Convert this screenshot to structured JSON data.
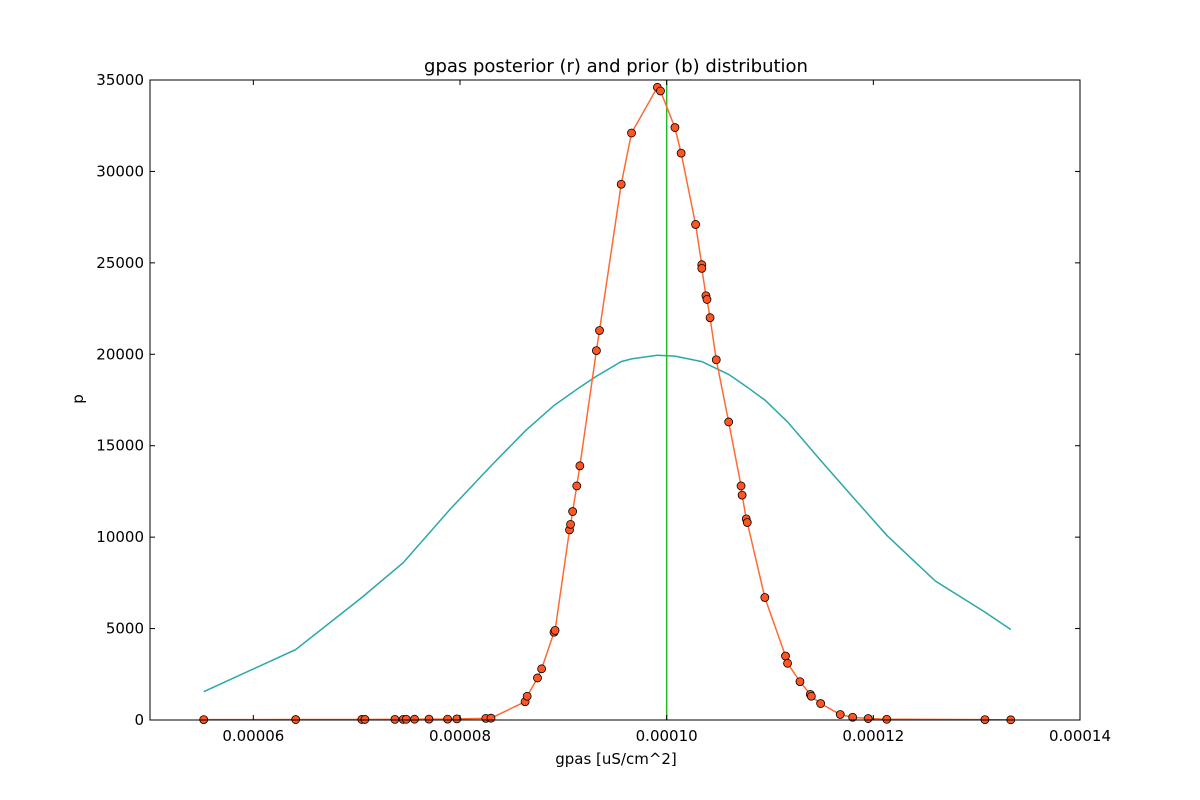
{
  "chart_data": {
    "type": "line",
    "title": "gpas posterior (r) and prior (b) distribution",
    "xlabel": "gpas [uS/cm^2]",
    "ylabel": "p",
    "xlim": [
      5e-05,
      0.00014
    ],
    "ylim": [
      0,
      35000
    ],
    "xticks": [
      6e-05,
      8e-05,
      0.0001,
      0.00012,
      0.00014
    ],
    "xtick_labels": [
      "0.00006",
      "0.00008",
      "0.00010",
      "0.00012",
      "0.00014"
    ],
    "yticks": [
      0,
      5000,
      10000,
      15000,
      20000,
      25000,
      30000,
      35000
    ],
    "ytick_labels": [
      "0",
      "5000",
      "10000",
      "15000",
      "20000",
      "25000",
      "30000",
      "35000"
    ],
    "grid": false,
    "colors": {
      "posterior": "#ff6a33",
      "posterior_marker": "#ff5522",
      "prior": "#2aa8a8",
      "vline": "#22bb22"
    },
    "vline_x": 0.0001,
    "series": [
      {
        "style": "line-markers",
        "points": [
          [
            5.52e-05,
            20
          ],
          [
            6.41e-05,
            25
          ],
          [
            7.05e-05,
            30
          ],
          [
            7.08e-05,
            30
          ],
          [
            7.37e-05,
            35
          ],
          [
            7.45e-05,
            35
          ],
          [
            7.48e-05,
            40
          ],
          [
            7.56e-05,
            45
          ],
          [
            7.7e-05,
            50
          ],
          [
            7.88e-05,
            50
          ],
          [
            7.97e-05,
            60
          ],
          [
            8.25e-05,
            90
          ],
          [
            8.3e-05,
            100
          ],
          [
            8.63e-05,
            1000
          ],
          [
            8.65e-05,
            1300
          ],
          [
            8.75e-05,
            2300
          ],
          [
            8.79e-05,
            2800
          ],
          [
            8.91e-05,
            4800
          ],
          [
            8.92e-05,
            4900
          ],
          [
            9.06e-05,
            10400
          ],
          [
            9.07e-05,
            10700
          ],
          [
            9.09e-05,
            11400
          ],
          [
            9.13e-05,
            12800
          ],
          [
            9.16e-05,
            13900
          ],
          [
            9.32e-05,
            20200
          ],
          [
            9.35e-05,
            21300
          ],
          [
            9.56e-05,
            29300
          ],
          [
            9.66e-05,
            32100
          ],
          [
            9.91e-05,
            34600
          ],
          [
            9.94e-05,
            34400
          ],
          [
            0.0001008,
            32400
          ],
          [
            0.0001014,
            31000
          ],
          [
            0.0001028,
            27100
          ],
          [
            0.0001034,
            24900
          ],
          [
            0.0001034,
            24700
          ],
          [
            0.0001038,
            23200
          ],
          [
            0.0001039,
            23000
          ],
          [
            0.0001042,
            22000
          ],
          [
            0.0001048,
            19700
          ],
          [
            0.000106,
            16300
          ],
          [
            0.0001072,
            12800
          ],
          [
            0.0001073,
            12300
          ],
          [
            0.0001077,
            11000
          ],
          [
            0.0001078,
            10800
          ],
          [
            0.0001095,
            6700
          ],
          [
            0.0001115,
            3500
          ],
          [
            0.0001117,
            3100
          ],
          [
            0.0001129,
            2100
          ],
          [
            0.0001139,
            1400
          ],
          [
            0.000114,
            1300
          ],
          [
            0.0001149,
            900
          ],
          [
            0.0001168,
            300
          ],
          [
            0.000118,
            150
          ],
          [
            0.0001195,
            80
          ],
          [
            0.0001213,
            40
          ],
          [
            0.0001308,
            20
          ],
          [
            0.0001333,
            10
          ]
        ]
      },
      {
        "style": "line",
        "points": [
          [
            5.52e-05,
            1550
          ],
          [
            6.41e-05,
            3850
          ],
          [
            7.05e-05,
            6700
          ],
          [
            7.45e-05,
            8600
          ],
          [
            7.9e-05,
            11500
          ],
          [
            8.3e-05,
            13900
          ],
          [
            8.63e-05,
            15800
          ],
          [
            8.91e-05,
            17200
          ],
          [
            9.16e-05,
            18200
          ],
          [
            9.32e-05,
            18800
          ],
          [
            9.56e-05,
            19600
          ],
          [
            9.66e-05,
            19750
          ],
          [
            9.91e-05,
            19950
          ],
          [
            0.0001008,
            19900
          ],
          [
            0.0001034,
            19600
          ],
          [
            0.000106,
            18900
          ],
          [
            0.0001078,
            18200
          ],
          [
            0.0001095,
            17500
          ],
          [
            0.0001117,
            16300
          ],
          [
            0.0001149,
            14200
          ],
          [
            0.000118,
            12200
          ],
          [
            0.0001213,
            10100
          ],
          [
            0.000126,
            7600
          ],
          [
            0.0001308,
            5900
          ],
          [
            0.0001333,
            4950
          ]
        ]
      }
    ]
  }
}
